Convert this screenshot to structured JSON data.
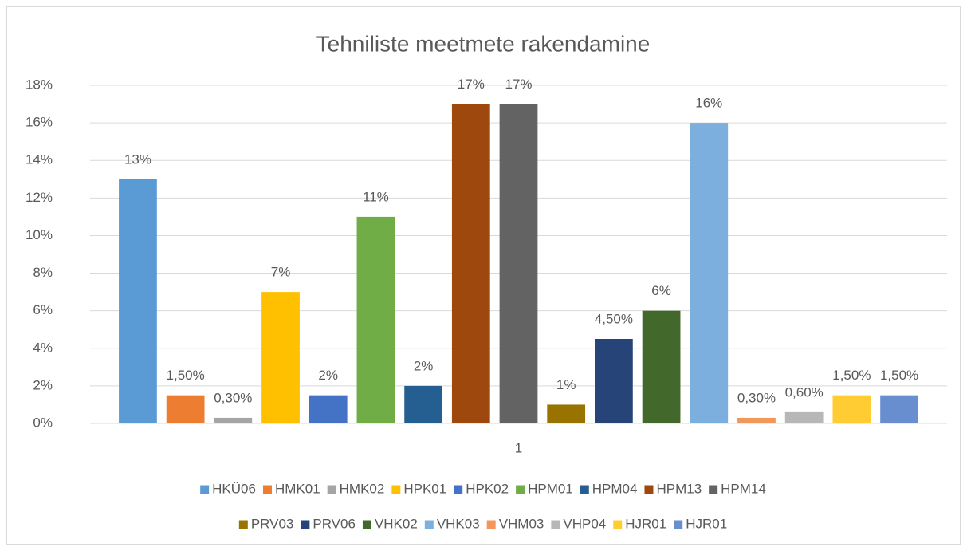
{
  "chart_data": {
    "type": "bar",
    "title": "Tehniliste meetmete rakendamine",
    "categories": [
      "1"
    ],
    "ylim": [
      0,
      18
    ],
    "yticks": [
      {
        "value": 0,
        "label": "0%"
      },
      {
        "value": 2,
        "label": "2%"
      },
      {
        "value": 4,
        "label": "4%"
      },
      {
        "value": 6,
        "label": "6%"
      },
      {
        "value": 8,
        "label": "8%"
      },
      {
        "value": 10,
        "label": "10%"
      },
      {
        "value": 12,
        "label": "12%"
      },
      {
        "value": 14,
        "label": "14%"
      },
      {
        "value": 16,
        "label": "16%"
      },
      {
        "value": 18,
        "label": "18%"
      }
    ],
    "grid": true,
    "legend": "bottom",
    "series": [
      {
        "name": "HKÜ06",
        "color": "#5b9bd5",
        "values": [
          13
        ],
        "value_labels": [
          "13%"
        ]
      },
      {
        "name": "HMK01",
        "color": "#ed7d31",
        "values": [
          1.5
        ],
        "value_labels": [
          "1,50%"
        ]
      },
      {
        "name": "HMK02",
        "color": "#a5a5a5",
        "values": [
          0.3
        ],
        "value_labels": [
          "0,30%"
        ]
      },
      {
        "name": "HPK01",
        "color": "#ffc000",
        "values": [
          7
        ],
        "value_labels": [
          "7%"
        ]
      },
      {
        "name": "HPK02",
        "color": "#4472c4",
        "values": [
          1.5
        ],
        "value_labels": [
          "2%"
        ]
      },
      {
        "name": "HPM01",
        "color": "#70ad47",
        "values": [
          11
        ],
        "value_labels": [
          "11%"
        ]
      },
      {
        "name": "HPM04",
        "color": "#255e91",
        "values": [
          2
        ],
        "value_labels": [
          "2%"
        ]
      },
      {
        "name": "HPM13",
        "color": "#9e480e",
        "values": [
          17
        ],
        "value_labels": [
          "17%"
        ]
      },
      {
        "name": "HPM14",
        "color": "#636363",
        "values": [
          17
        ],
        "value_labels": [
          "17%"
        ]
      },
      {
        "name": "PRV03",
        "color": "#997300",
        "values": [
          1
        ],
        "value_labels": [
          "1%"
        ]
      },
      {
        "name": "PRV06",
        "color": "#264478",
        "values": [
          4.5
        ],
        "value_labels": [
          "4,50%"
        ]
      },
      {
        "name": "VHK02",
        "color": "#43682b",
        "values": [
          6
        ],
        "value_labels": [
          "6%"
        ]
      },
      {
        "name": "VHK03",
        "color": "#7cafdd",
        "values": [
          16
        ],
        "value_labels": [
          "16%"
        ]
      },
      {
        "name": "VHM03",
        "color": "#f1975a",
        "values": [
          0.3
        ],
        "value_labels": [
          "0,30%"
        ]
      },
      {
        "name": "VHP04",
        "color": "#b7b7b7",
        "values": [
          0.6
        ],
        "value_labels": [
          "0,60%"
        ]
      },
      {
        "name": "HJR01",
        "color": "#ffcd33",
        "values": [
          1.5
        ],
        "value_labels": [
          "1,50%"
        ]
      },
      {
        "name": "HJR01",
        "color": "#698ed0",
        "values": [
          1.5
        ],
        "value_labels": [
          "1,50%"
        ]
      }
    ]
  }
}
